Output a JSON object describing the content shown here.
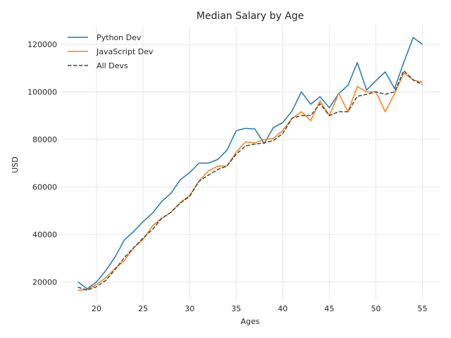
{
  "chart_data": {
    "type": "line",
    "title": "Median Salary by Age",
    "xlabel": "Ages",
    "ylabel": "USD",
    "grid": true,
    "legend": "top-left",
    "xlim": [
      16.15,
      56.85
    ],
    "ylim": [
      11800,
      128000
    ],
    "xticks": [
      20,
      25,
      30,
      35,
      40,
      45,
      50,
      55
    ],
    "yticks": [
      20000,
      40000,
      60000,
      80000,
      100000,
      120000
    ],
    "x": [
      18,
      19,
      20,
      21,
      22,
      23,
      24,
      25,
      26,
      27,
      28,
      29,
      30,
      31,
      32,
      33,
      34,
      35,
      36,
      37,
      38,
      39,
      40,
      41,
      42,
      43,
      44,
      45,
      46,
      47,
      48,
      49,
      50,
      51,
      52,
      53,
      54,
      55
    ],
    "series": [
      {
        "name": "Python Dev",
        "color": "#1f77b4",
        "dash": "solid",
        "values": [
          20046,
          17100,
          20000,
          24744,
          30500,
          37732,
          41247,
          45372,
          48876,
          53850,
          57287,
          63016,
          65998,
          70003,
          70000,
          71496,
          75370,
          83640,
          84666,
          84392,
          78254,
          85000,
          87038,
          91991,
          100000,
          94796,
          97962,
          93302,
          99240,
          102736,
          112285,
          100771,
          104708,
          108423,
          101407,
          112542,
          122870,
          120000
        ]
      },
      {
        "name": "JavaScript Dev",
        "color": "#ff7f0e",
        "dash": "solid",
        "values": [
          16446,
          16791,
          18942,
          21780,
          25704,
          29000,
          34372,
          37810,
          43515,
          46823,
          49293,
          53437,
          56373,
          62375,
          66674,
          68745,
          68746,
          74583,
          79000,
          78508,
          79996,
          80403,
          83820,
          88833,
          91660,
          87892,
          96243,
          90000,
          99313,
          91660,
          102264,
          100000,
          100000,
          91660,
          99240,
          108000,
          105000,
          104000
        ]
      },
      {
        "name": "All Devs",
        "color": "#444444",
        "dash": "dashed",
        "values": [
          17784,
          16500,
          18012,
          20628,
          25206,
          30252,
          34368,
          38496,
          42000,
          46752,
          49320,
          53200,
          56000,
          62316,
          64928,
          67317,
          68748,
          73752,
          77232,
          78000,
          78508,
          79536,
          82488,
          88935,
          90000,
          90056,
          95000,
          90000,
          91633,
          91660,
          98150,
          98964,
          100000,
          98988,
          100000,
          108923,
          105000,
          103117
        ]
      }
    ]
  }
}
